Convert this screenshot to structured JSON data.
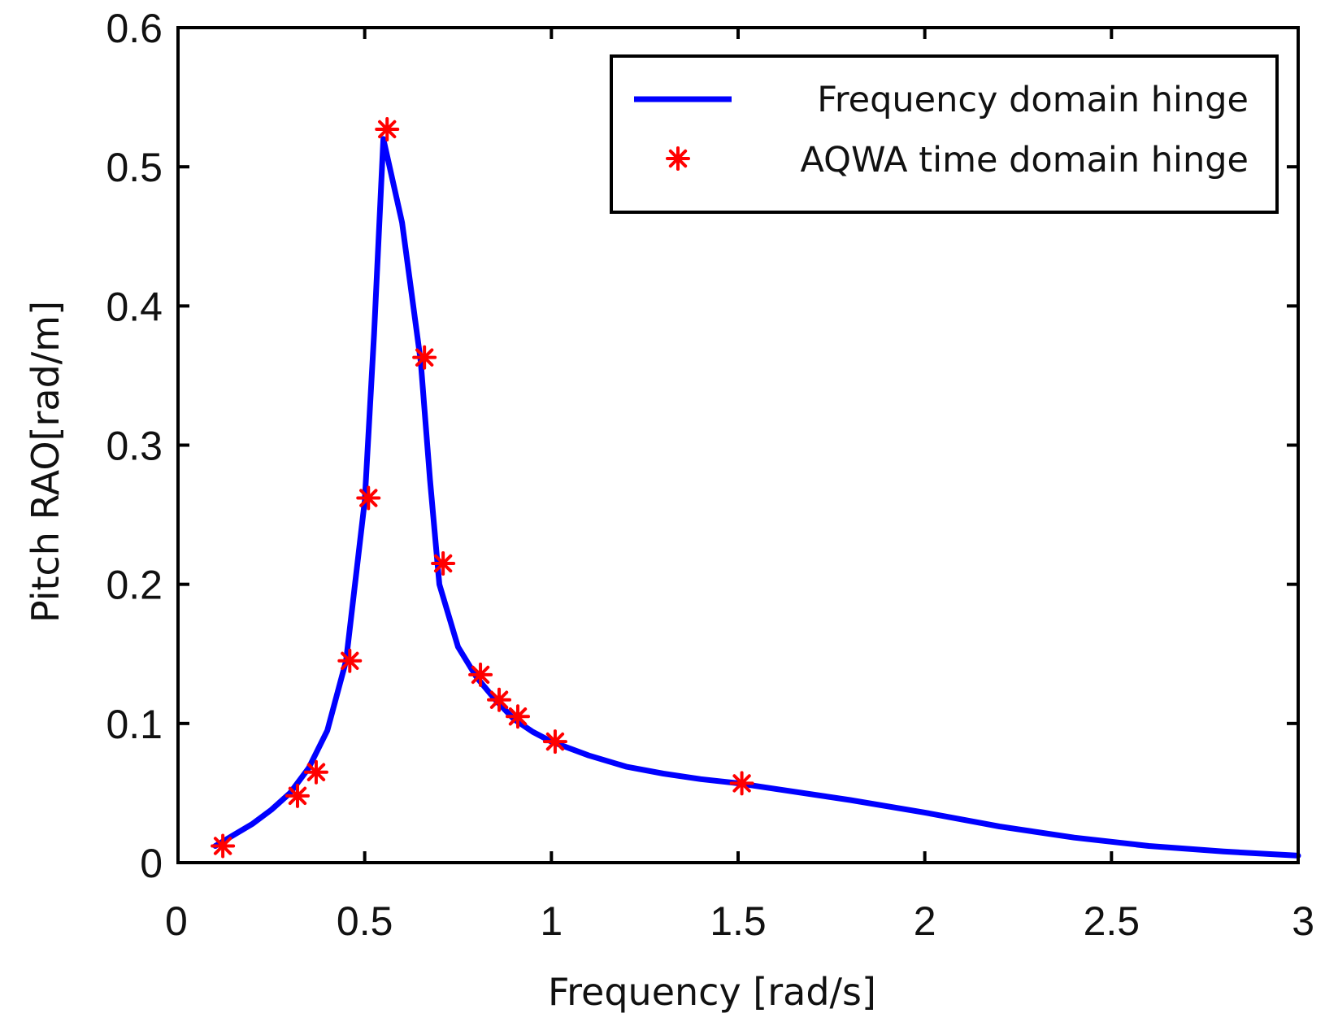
{
  "chart_data": {
    "type": "line",
    "title": "",
    "xlabel": "Frequency [rad/s]",
    "ylabel": "Pitch RAO[rad/m]",
    "xlim": [
      0,
      3
    ],
    "ylim": [
      0,
      0.6
    ],
    "x_ticks": [
      "0",
      "0.5",
      "1",
      "1.5",
      "2",
      "2.5",
      "3"
    ],
    "y_ticks": [
      "0",
      "0.1",
      "0.2",
      "0.3",
      "0.4",
      "0.5",
      "0.6"
    ],
    "grid": false,
    "legend_position": "top-right",
    "series": [
      {
        "name": "Frequency domain hinge",
        "style": "line",
        "color": "#0000ff",
        "x": [
          0.1,
          0.15,
          0.2,
          0.25,
          0.3,
          0.35,
          0.4,
          0.45,
          0.5,
          0.525,
          0.55,
          0.6,
          0.65,
          0.675,
          0.7,
          0.75,
          0.8,
          0.85,
          0.9,
          0.95,
          1.0,
          1.1,
          1.2,
          1.3,
          1.4,
          1.5,
          1.6,
          1.8,
          2.0,
          2.2,
          2.4,
          2.6,
          2.8,
          3.0
        ],
        "y": [
          0.012,
          0.02,
          0.028,
          0.038,
          0.05,
          0.068,
          0.095,
          0.145,
          0.26,
          0.38,
          0.52,
          0.46,
          0.36,
          0.275,
          0.2,
          0.155,
          0.133,
          0.117,
          0.103,
          0.094,
          0.087,
          0.077,
          0.069,
          0.064,
          0.06,
          0.057,
          0.053,
          0.045,
          0.036,
          0.026,
          0.018,
          0.012,
          0.008,
          0.005
        ]
      },
      {
        "name": "AQWA time domain hinge",
        "style": "markers",
        "marker": "asterisk",
        "color": "#ff0000",
        "x": [
          0.12,
          0.32,
          0.37,
          0.46,
          0.51,
          0.56,
          0.66,
          0.71,
          0.81,
          0.86,
          0.91,
          1.01,
          1.51
        ],
        "y": [
          0.012,
          0.048,
          0.065,
          0.145,
          0.262,
          0.527,
          0.363,
          0.215,
          0.135,
          0.117,
          0.105,
          0.087,
          0.057
        ]
      }
    ]
  }
}
